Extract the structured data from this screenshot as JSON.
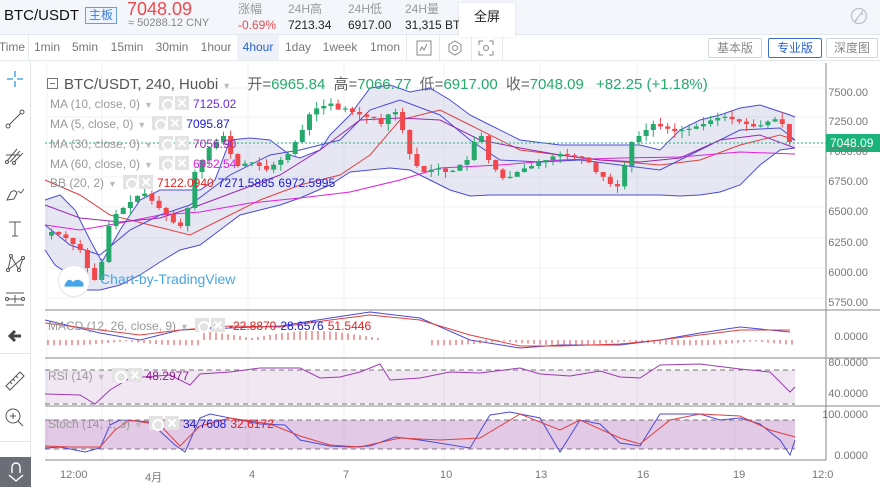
{
  "header": {
    "pair": "BTC/USDT",
    "board_badge": "主板",
    "last_price": "7048.09",
    "cny_approx": "≈ 50288.12 CNY",
    "stats": [
      {
        "label": "涨幅",
        "value": "-0.69%",
        "negative": true
      },
      {
        "label": "24H高",
        "value": "7213.34"
      },
      {
        "label": "24H低",
        "value": "6917.00"
      },
      {
        "label": "24H量",
        "value": "31,315 BT"
      }
    ],
    "tooltip": "全屏",
    "brush_icon": "brush-off-icon"
  },
  "toolbar": {
    "timeframes": [
      "Time",
      "1min",
      "5min",
      "15min",
      "30min",
      "1hour",
      "4hour",
      "1day",
      "1week",
      "1mon"
    ],
    "active_timeframe": "4hour",
    "icons": [
      "indicator-icon",
      "settings-hexagon-icon",
      "screenshot-icon"
    ],
    "versions": [
      "基本版",
      "专业版",
      "深度图"
    ],
    "active_version": "专业版"
  },
  "left_tools": [
    "crosshair-icon",
    "trendline-icon",
    "pitchfork-icon",
    "brush-icon",
    "text-icon",
    "pattern-icon",
    "measure-icon",
    "back-arrow-icon",
    "ruler-icon",
    "zoom-in-icon",
    "magnet-icon"
  ],
  "chart": {
    "title": "BTC/USDT, 240, Huobi",
    "ohlc": {
      "open_label": "开=",
      "open": "6965.84",
      "high_label": "高=",
      "high": "7066.77",
      "low_label": "低=",
      "low": "6917.00",
      "close_label": "收=",
      "close": "7048.09",
      "change": "+82.25 (+1.18%)"
    },
    "indicators": [
      {
        "name": "MA (10, close, 0)",
        "values": [
          "7125.02"
        ],
        "colors": [
          "#6c2bd9"
        ]
      },
      {
        "name": "MA (5, close, 0)",
        "values": [
          "7095.87"
        ],
        "colors": [
          "#1a1ad6"
        ]
      },
      {
        "name": "MA (30, close, 0)",
        "values": [
          "7056.90"
        ],
        "colors": [
          "#9c27b0"
        ]
      },
      {
        "name": "MA (60, close, 0)",
        "values": [
          "6952.54"
        ],
        "colors": [
          "#e020e0"
        ]
      },
      {
        "name": "BB (20, 2)",
        "values": [
          "7122.0940",
          "7271.5885",
          "6972.5995"
        ],
        "colors": [
          "#e02020",
          "#1a1ad6",
          "#1a1ad6"
        ]
      }
    ],
    "watermark": "Chart-by-TradingView",
    "last_price_label": "7048.09",
    "y_axis": [
      "7500.00",
      "7250.00",
      "7000.00",
      "6750.00",
      "6500.00",
      "6250.00",
      "6000.00",
      "5750.00"
    ],
    "x_axis": [
      "12:00",
      "4月",
      "4",
      "7",
      "10",
      "13",
      "16",
      "19",
      "12:0"
    ],
    "macd": {
      "name": "MACD (12, 26, close, 9)",
      "values": [
        "-22.8870",
        "28.6576",
        "51.5446"
      ],
      "colors": [
        "#e02020",
        "#1a1ad6",
        "#e02020"
      ],
      "axis": [
        "0.0000"
      ]
    },
    "rsi": {
      "name": "RSI (14)",
      "values": [
        "48.2977"
      ],
      "colors": [
        "#8b1a8b"
      ],
      "axis": [
        "80.0000",
        "40.0000"
      ]
    },
    "stoch": {
      "name": "Stoch (14, 1, 3)",
      "values": [
        "34.7608",
        "32.6172"
      ],
      "colors": [
        "#1a1ad6",
        "#e02020"
      ],
      "axis": [
        "100.0000",
        "0.0000"
      ]
    }
  },
  "colors": {
    "up": "#26a96c",
    "down": "#f0484d",
    "accent": "#2c62d0"
  }
}
